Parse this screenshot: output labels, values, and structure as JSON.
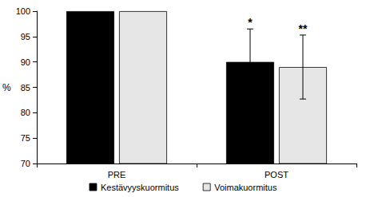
{
  "chart_data": {
    "type": "bar",
    "categories": [
      "PRE",
      "POST"
    ],
    "y_label": "%",
    "ylim": [
      70,
      100
    ],
    "yticks": [
      70,
      75,
      80,
      85,
      90,
      95,
      100
    ],
    "grid": false,
    "legend": "bottom",
    "series": [
      {
        "name": "Kestävyyskuormitus",
        "color": "#000000",
        "values": [
          100,
          90
        ],
        "errors": [
          null,
          6.5
        ],
        "annotations": [
          null,
          "*"
        ]
      },
      {
        "name": "Voimakuormitus",
        "color": "#e6e6e6",
        "values": [
          100,
          89
        ],
        "errors": [
          null,
          6.3
        ],
        "annotations": [
          null,
          "**"
        ]
      }
    ]
  }
}
